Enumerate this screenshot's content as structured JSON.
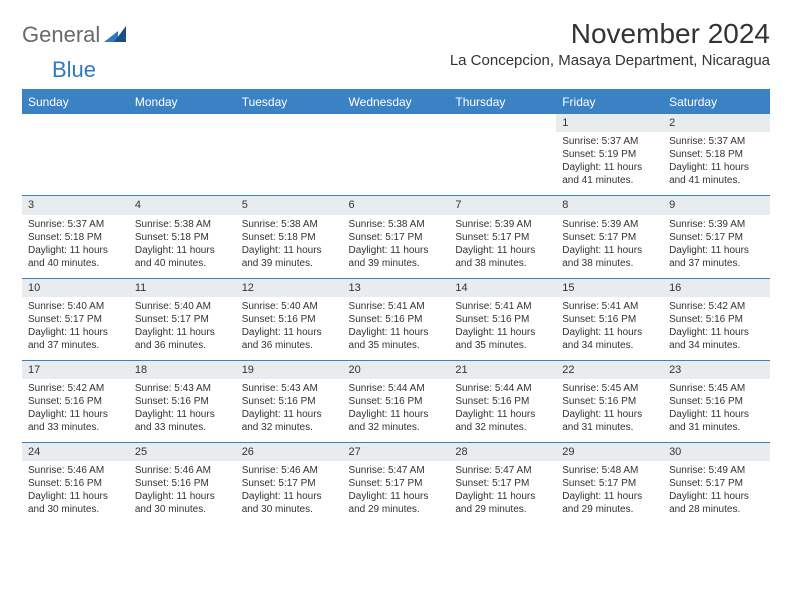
{
  "logo": {
    "general": "General",
    "blue": "Blue"
  },
  "title": "November 2024",
  "location": "La Concepcion, Masaya Department, Nicaragua",
  "colors": {
    "accent": "#3b82c4",
    "header_bg": "#3b82c4",
    "header_text": "#ffffff",
    "daynum_bg": "#e9ecef",
    "text": "#333333",
    "logo_gray": "#6a6a6a",
    "logo_blue": "#2f7abf",
    "background": "#ffffff"
  },
  "day_headers": [
    "Sunday",
    "Monday",
    "Tuesday",
    "Wednesday",
    "Thursday",
    "Friday",
    "Saturday"
  ],
  "weeks": [
    [
      {
        "blank": true
      },
      {
        "blank": true
      },
      {
        "blank": true
      },
      {
        "blank": true
      },
      {
        "blank": true
      },
      {
        "num": "1",
        "sunrise": "Sunrise: 5:37 AM",
        "sunset": "Sunset: 5:19 PM",
        "day1": "Daylight: 11 hours",
        "day2": "and 41 minutes."
      },
      {
        "num": "2",
        "sunrise": "Sunrise: 5:37 AM",
        "sunset": "Sunset: 5:18 PM",
        "day1": "Daylight: 11 hours",
        "day2": "and 41 minutes."
      }
    ],
    [
      {
        "num": "3",
        "sunrise": "Sunrise: 5:37 AM",
        "sunset": "Sunset: 5:18 PM",
        "day1": "Daylight: 11 hours",
        "day2": "and 40 minutes."
      },
      {
        "num": "4",
        "sunrise": "Sunrise: 5:38 AM",
        "sunset": "Sunset: 5:18 PM",
        "day1": "Daylight: 11 hours",
        "day2": "and 40 minutes."
      },
      {
        "num": "5",
        "sunrise": "Sunrise: 5:38 AM",
        "sunset": "Sunset: 5:18 PM",
        "day1": "Daylight: 11 hours",
        "day2": "and 39 minutes."
      },
      {
        "num": "6",
        "sunrise": "Sunrise: 5:38 AM",
        "sunset": "Sunset: 5:17 PM",
        "day1": "Daylight: 11 hours",
        "day2": "and 39 minutes."
      },
      {
        "num": "7",
        "sunrise": "Sunrise: 5:39 AM",
        "sunset": "Sunset: 5:17 PM",
        "day1": "Daylight: 11 hours",
        "day2": "and 38 minutes."
      },
      {
        "num": "8",
        "sunrise": "Sunrise: 5:39 AM",
        "sunset": "Sunset: 5:17 PM",
        "day1": "Daylight: 11 hours",
        "day2": "and 38 minutes."
      },
      {
        "num": "9",
        "sunrise": "Sunrise: 5:39 AM",
        "sunset": "Sunset: 5:17 PM",
        "day1": "Daylight: 11 hours",
        "day2": "and 37 minutes."
      }
    ],
    [
      {
        "num": "10",
        "sunrise": "Sunrise: 5:40 AM",
        "sunset": "Sunset: 5:17 PM",
        "day1": "Daylight: 11 hours",
        "day2": "and 37 minutes."
      },
      {
        "num": "11",
        "sunrise": "Sunrise: 5:40 AM",
        "sunset": "Sunset: 5:17 PM",
        "day1": "Daylight: 11 hours",
        "day2": "and 36 minutes."
      },
      {
        "num": "12",
        "sunrise": "Sunrise: 5:40 AM",
        "sunset": "Sunset: 5:16 PM",
        "day1": "Daylight: 11 hours",
        "day2": "and 36 minutes."
      },
      {
        "num": "13",
        "sunrise": "Sunrise: 5:41 AM",
        "sunset": "Sunset: 5:16 PM",
        "day1": "Daylight: 11 hours",
        "day2": "and 35 minutes."
      },
      {
        "num": "14",
        "sunrise": "Sunrise: 5:41 AM",
        "sunset": "Sunset: 5:16 PM",
        "day1": "Daylight: 11 hours",
        "day2": "and 35 minutes."
      },
      {
        "num": "15",
        "sunrise": "Sunrise: 5:41 AM",
        "sunset": "Sunset: 5:16 PM",
        "day1": "Daylight: 11 hours",
        "day2": "and 34 minutes."
      },
      {
        "num": "16",
        "sunrise": "Sunrise: 5:42 AM",
        "sunset": "Sunset: 5:16 PM",
        "day1": "Daylight: 11 hours",
        "day2": "and 34 minutes."
      }
    ],
    [
      {
        "num": "17",
        "sunrise": "Sunrise: 5:42 AM",
        "sunset": "Sunset: 5:16 PM",
        "day1": "Daylight: 11 hours",
        "day2": "and 33 minutes."
      },
      {
        "num": "18",
        "sunrise": "Sunrise: 5:43 AM",
        "sunset": "Sunset: 5:16 PM",
        "day1": "Daylight: 11 hours",
        "day2": "and 33 minutes."
      },
      {
        "num": "19",
        "sunrise": "Sunrise: 5:43 AM",
        "sunset": "Sunset: 5:16 PM",
        "day1": "Daylight: 11 hours",
        "day2": "and 32 minutes."
      },
      {
        "num": "20",
        "sunrise": "Sunrise: 5:44 AM",
        "sunset": "Sunset: 5:16 PM",
        "day1": "Daylight: 11 hours",
        "day2": "and 32 minutes."
      },
      {
        "num": "21",
        "sunrise": "Sunrise: 5:44 AM",
        "sunset": "Sunset: 5:16 PM",
        "day1": "Daylight: 11 hours",
        "day2": "and 32 minutes."
      },
      {
        "num": "22",
        "sunrise": "Sunrise: 5:45 AM",
        "sunset": "Sunset: 5:16 PM",
        "day1": "Daylight: 11 hours",
        "day2": "and 31 minutes."
      },
      {
        "num": "23",
        "sunrise": "Sunrise: 5:45 AM",
        "sunset": "Sunset: 5:16 PM",
        "day1": "Daylight: 11 hours",
        "day2": "and 31 minutes."
      }
    ],
    [
      {
        "num": "24",
        "sunrise": "Sunrise: 5:46 AM",
        "sunset": "Sunset: 5:16 PM",
        "day1": "Daylight: 11 hours",
        "day2": "and 30 minutes."
      },
      {
        "num": "25",
        "sunrise": "Sunrise: 5:46 AM",
        "sunset": "Sunset: 5:16 PM",
        "day1": "Daylight: 11 hours",
        "day2": "and 30 minutes."
      },
      {
        "num": "26",
        "sunrise": "Sunrise: 5:46 AM",
        "sunset": "Sunset: 5:17 PM",
        "day1": "Daylight: 11 hours",
        "day2": "and 30 minutes."
      },
      {
        "num": "27",
        "sunrise": "Sunrise: 5:47 AM",
        "sunset": "Sunset: 5:17 PM",
        "day1": "Daylight: 11 hours",
        "day2": "and 29 minutes."
      },
      {
        "num": "28",
        "sunrise": "Sunrise: 5:47 AM",
        "sunset": "Sunset: 5:17 PM",
        "day1": "Daylight: 11 hours",
        "day2": "and 29 minutes."
      },
      {
        "num": "29",
        "sunrise": "Sunrise: 5:48 AM",
        "sunset": "Sunset: 5:17 PM",
        "day1": "Daylight: 11 hours",
        "day2": "and 29 minutes."
      },
      {
        "num": "30",
        "sunrise": "Sunrise: 5:49 AM",
        "sunset": "Sunset: 5:17 PM",
        "day1": "Daylight: 11 hours",
        "day2": "and 28 minutes."
      }
    ]
  ]
}
